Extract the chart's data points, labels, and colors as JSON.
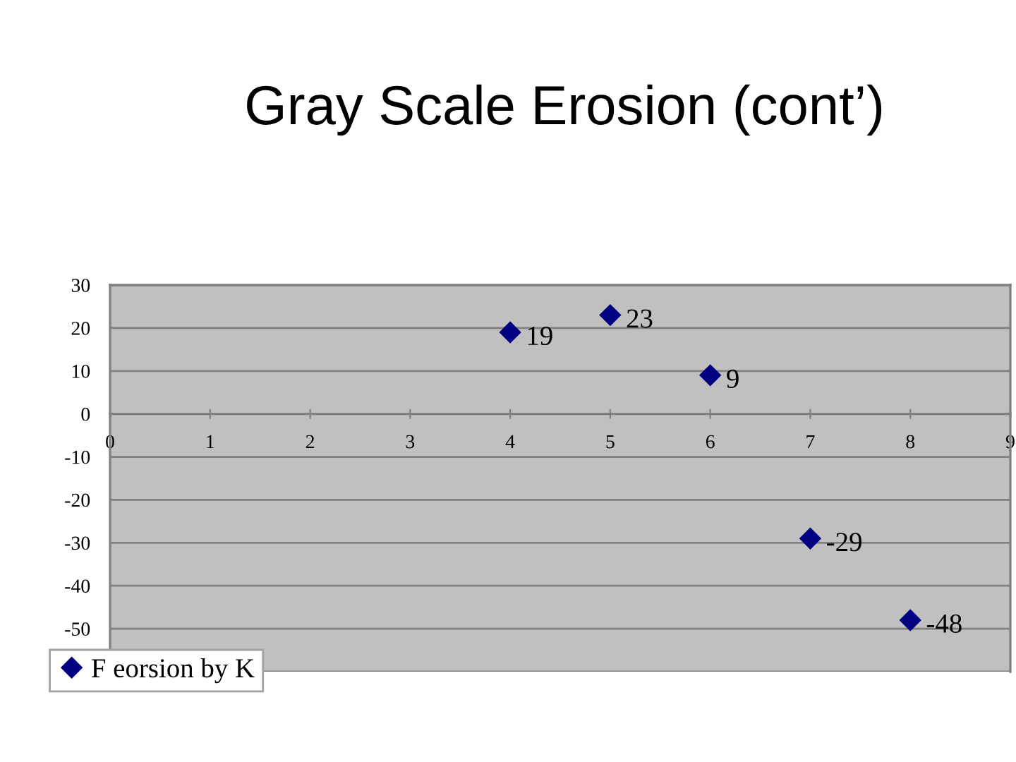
{
  "chart_data": {
    "type": "scatter",
    "title": "Gray Scale Erosion (cont’)",
    "x": [
      4,
      5,
      6,
      7,
      8
    ],
    "series": [
      {
        "name": "F eorsion by K",
        "color": "#000080",
        "values": [
          19,
          23,
          9,
          -29,
          -48
        ]
      }
    ],
    "xlim": [
      0,
      9
    ],
    "xticks": [
      0,
      1,
      2,
      3,
      4,
      5,
      6,
      7,
      8,
      9
    ],
    "ylim": [
      -60,
      30
    ],
    "yticks": [
      {
        "value": -60,
        "label": null
      },
      -50,
      -40,
      -30,
      -20,
      -10,
      0,
      10,
      20,
      30
    ],
    "grid": "y",
    "legend": "bottom left",
    "marker": "diamond",
    "data_labels": true
  }
}
